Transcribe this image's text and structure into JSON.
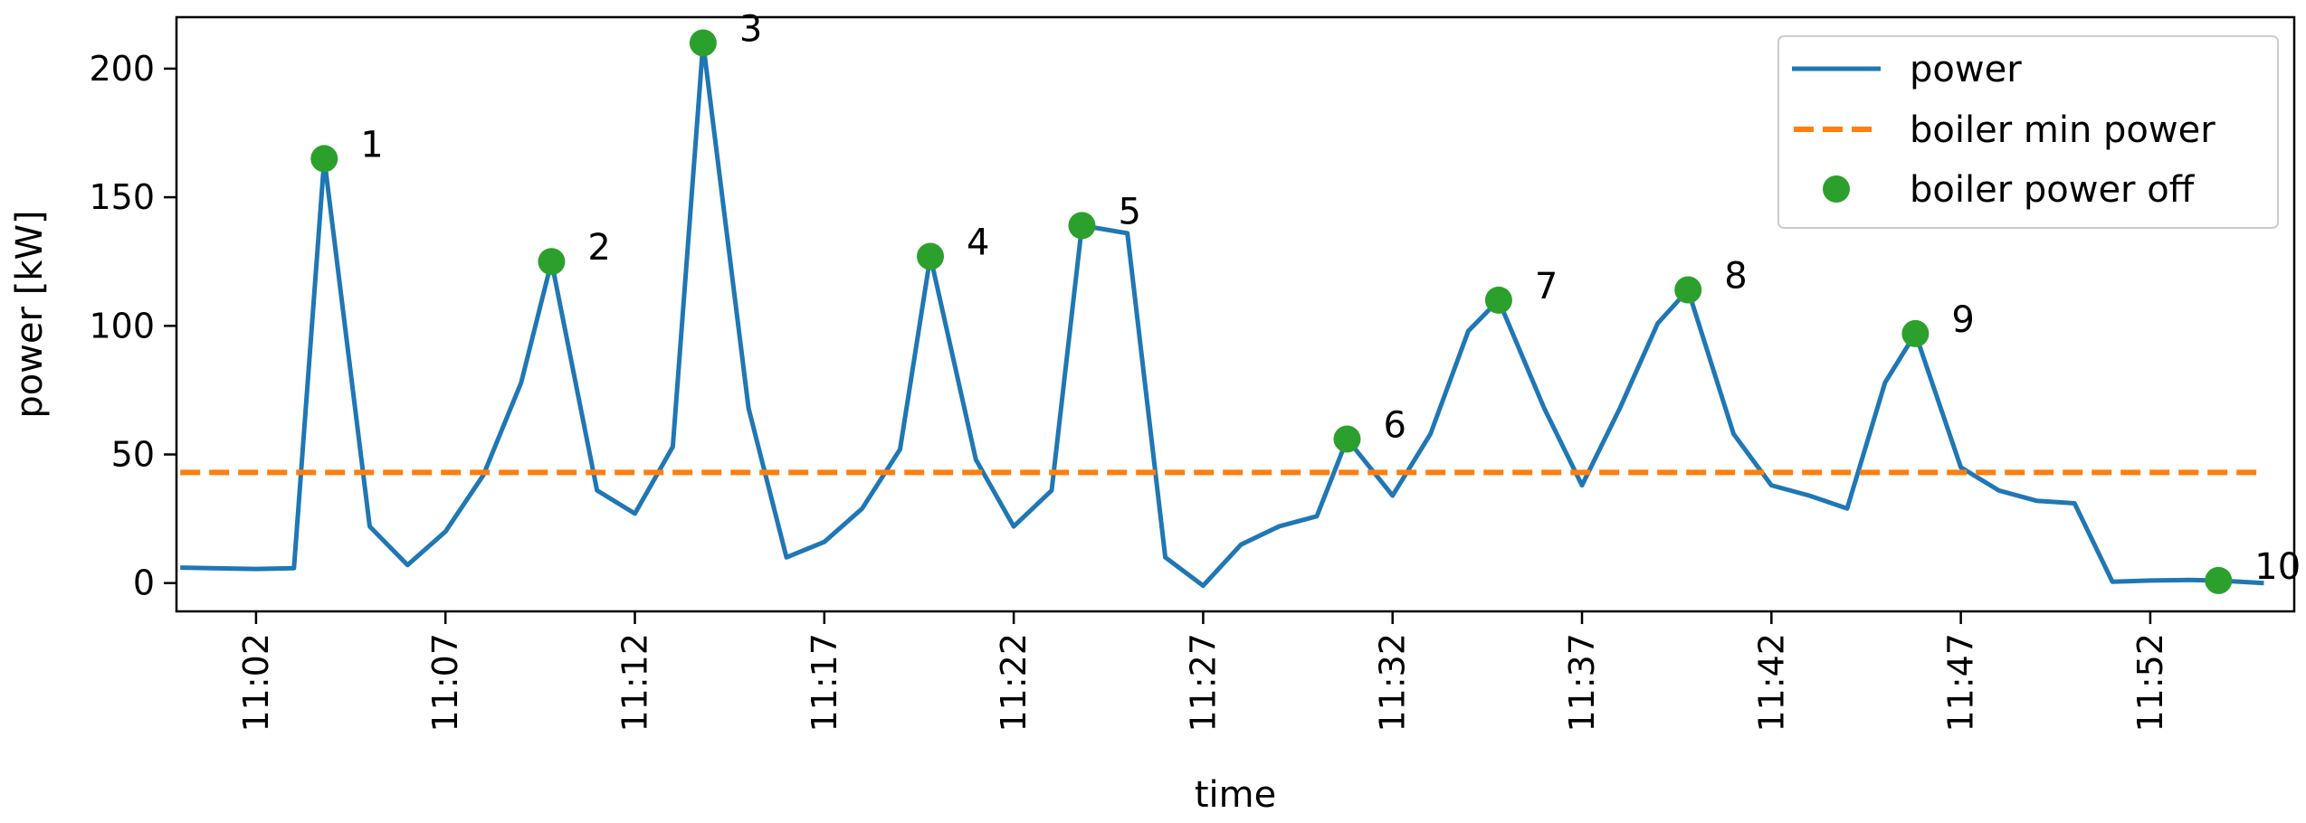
{
  "chart_data": {
    "type": "line",
    "title": "",
    "xlabel": "time",
    "ylabel": "power [kW]",
    "x_unit": "minute of clock time (decimal)",
    "xlim": [
      "10:59.9",
      "11:55.8"
    ],
    "ylim": [
      -11,
      220
    ],
    "x_ticks": [
      "11:02",
      "11:07",
      "11:12",
      "11:17",
      "11:22",
      "11:27",
      "11:32",
      "11:37",
      "11:42",
      "11:47",
      "11:52"
    ],
    "y_ticks": [
      "0",
      "50",
      "100",
      "150",
      "200"
    ],
    "y_tick_values": [
      0,
      50,
      100,
      150,
      200
    ],
    "grid": false,
    "legend": {
      "position": "top-right",
      "entries": [
        "power",
        "boiler min power",
        "boiler power off"
      ]
    },
    "series": [
      {
        "name": "power",
        "color": "#1f77b4",
        "style": "solid",
        "points": [
          [
            "11:00",
            6
          ],
          [
            "11:02",
            5.5
          ],
          [
            "11:03",
            5.8
          ],
          [
            "11:03.8",
            165
          ],
          [
            "11:05",
            22
          ],
          [
            "11:06",
            7
          ],
          [
            "11:07",
            20
          ],
          [
            "11:08",
            42
          ],
          [
            "11:09",
            78
          ],
          [
            "11:09.8",
            125
          ],
          [
            "11:11",
            36
          ],
          [
            "11:12",
            27
          ],
          [
            "11:13",
            53
          ],
          [
            "11:13.8",
            210
          ],
          [
            "11:15",
            68
          ],
          [
            "11:16",
            10
          ],
          [
            "11:17",
            16
          ],
          [
            "11:18",
            29
          ],
          [
            "11:19",
            52
          ],
          [
            "11:19.8",
            127
          ],
          [
            "11:21",
            48
          ],
          [
            "11:22",
            22
          ],
          [
            "11:23",
            36
          ],
          [
            "11:23.8",
            139
          ],
          [
            "11:25",
            136
          ],
          [
            "11:26",
            10
          ],
          [
            "11:27",
            -1
          ],
          [
            "11:28",
            15
          ],
          [
            "11:29",
            22
          ],
          [
            "11:30",
            26
          ],
          [
            "11:30.8",
            56
          ],
          [
            "11:32",
            34
          ],
          [
            "11:33",
            58
          ],
          [
            "11:34",
            98
          ],
          [
            "11:34.8",
            110
          ],
          [
            "11:36",
            68
          ],
          [
            "11:37",
            38
          ],
          [
            "11:38",
            68
          ],
          [
            "11:39",
            101
          ],
          [
            "11:39.8",
            114
          ],
          [
            "11:41",
            58
          ],
          [
            "11:42",
            38
          ],
          [
            "11:43",
            34
          ],
          [
            "11:44",
            29
          ],
          [
            "11:45",
            78
          ],
          [
            "11:45.8",
            97
          ],
          [
            "11:47",
            45
          ],
          [
            "11:48",
            36
          ],
          [
            "11:49",
            32
          ],
          [
            "11:50",
            31
          ],
          [
            "11:51",
            0.5
          ],
          [
            "11:52",
            1
          ],
          [
            "11:53",
            1.2
          ],
          [
            "11:53.8",
            1
          ],
          [
            "11:55",
            0
          ]
        ]
      },
      {
        "name": "boiler min power",
        "color": "#ff7f0e",
        "style": "dashed",
        "points": [
          [
            "11:00",
            43
          ],
          [
            "11:55",
            43
          ]
        ]
      },
      {
        "name": "boiler power off",
        "color": "#2ca02c",
        "style": "markers",
        "points": [
          {
            "x": "11:03.8",
            "y": 165,
            "label": "1"
          },
          {
            "x": "11:09.8",
            "y": 125,
            "label": "2"
          },
          {
            "x": "11:13.8",
            "y": 210,
            "label": "3"
          },
          {
            "x": "11:19.8",
            "y": 127,
            "label": "4"
          },
          {
            "x": "11:23.8",
            "y": 139,
            "label": "5"
          },
          {
            "x": "11:30.8",
            "y": 56,
            "label": "6"
          },
          {
            "x": "11:34.8",
            "y": 110,
            "label": "7"
          },
          {
            "x": "11:39.8",
            "y": 114,
            "label": "8"
          },
          {
            "x": "11:45.8",
            "y": 97,
            "label": "9"
          },
          {
            "x": "11:53.8",
            "y": 1,
            "label": "10"
          }
        ]
      }
    ]
  }
}
